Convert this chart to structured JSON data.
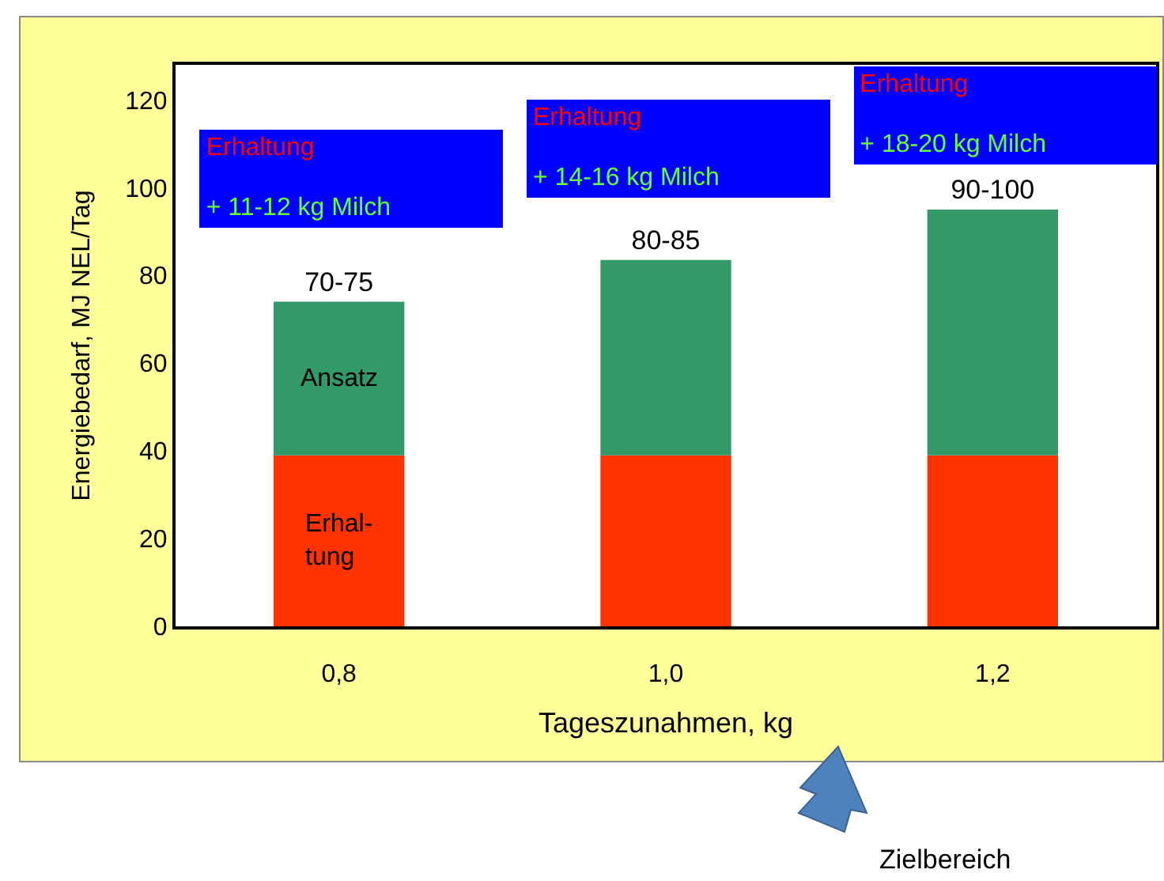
{
  "chart_data": {
    "type": "bar",
    "stacked": true,
    "xlabel": "Tageszunahmen, kg",
    "ylabel": "Energiebedarf, MJ NEL/Tag",
    "categories": [
      "0,8",
      "1,0",
      "1,2"
    ],
    "series": [
      {
        "name": "Erhal-\ntung",
        "color": "#ff3300",
        "values": [
          39,
          39,
          39
        ]
      },
      {
        "name": "Ansatz",
        "color": "#339966",
        "values": [
          35,
          44.5,
          56
        ],
        "value_labels": [
          "70-75",
          "80-85",
          "90-100"
        ]
      }
    ],
    "ylim": [
      0,
      128
    ],
    "yticks": [
      0,
      20,
      40,
      60,
      80,
      100,
      120
    ],
    "grid": false,
    "annotations": [
      "Erhaltung\n+ 11-12 kg Milch",
      "Erhaltung\n+ 14-16 kg Milch",
      "Erhaltung\n+ 18-20 kg Milch",
      "Zielbereich"
    ]
  }
}
